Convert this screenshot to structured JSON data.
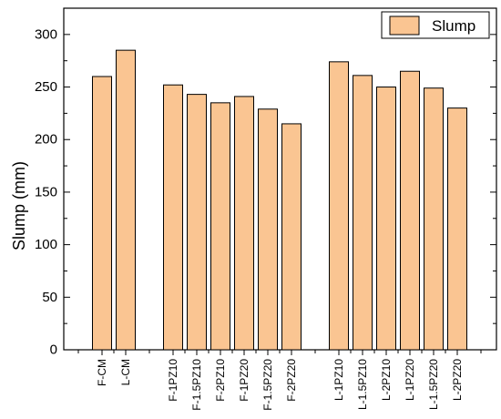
{
  "chart_data": {
    "type": "bar",
    "ylabel": "Slump (mm)",
    "xlabel": "",
    "ylim": [
      0,
      325
    ],
    "yticks": [
      0,
      50,
      100,
      150,
      200,
      250,
      300
    ],
    "legend": {
      "position": "top-right",
      "entries": [
        "Slump"
      ]
    },
    "bar_color": "#FAC592",
    "series": [
      {
        "name": "Slump",
        "categories": [
          "F-CM",
          "L-CM",
          "F-1PZ10",
          "F-1.5PZ10",
          "F-2PZ10",
          "F-1PZ20",
          "F-1.5PZ20",
          "F-2PZ20",
          "L-1PZ10",
          "L-1.5PZ10",
          "L-2PZ10",
          "L-1PZ20",
          "L-1.5PZ20",
          "L-2PZ20"
        ],
        "values": [
          260,
          285,
          252,
          243,
          235,
          241,
          229,
          215,
          274,
          261,
          250,
          265,
          249,
          230
        ]
      }
    ],
    "grid": false
  }
}
